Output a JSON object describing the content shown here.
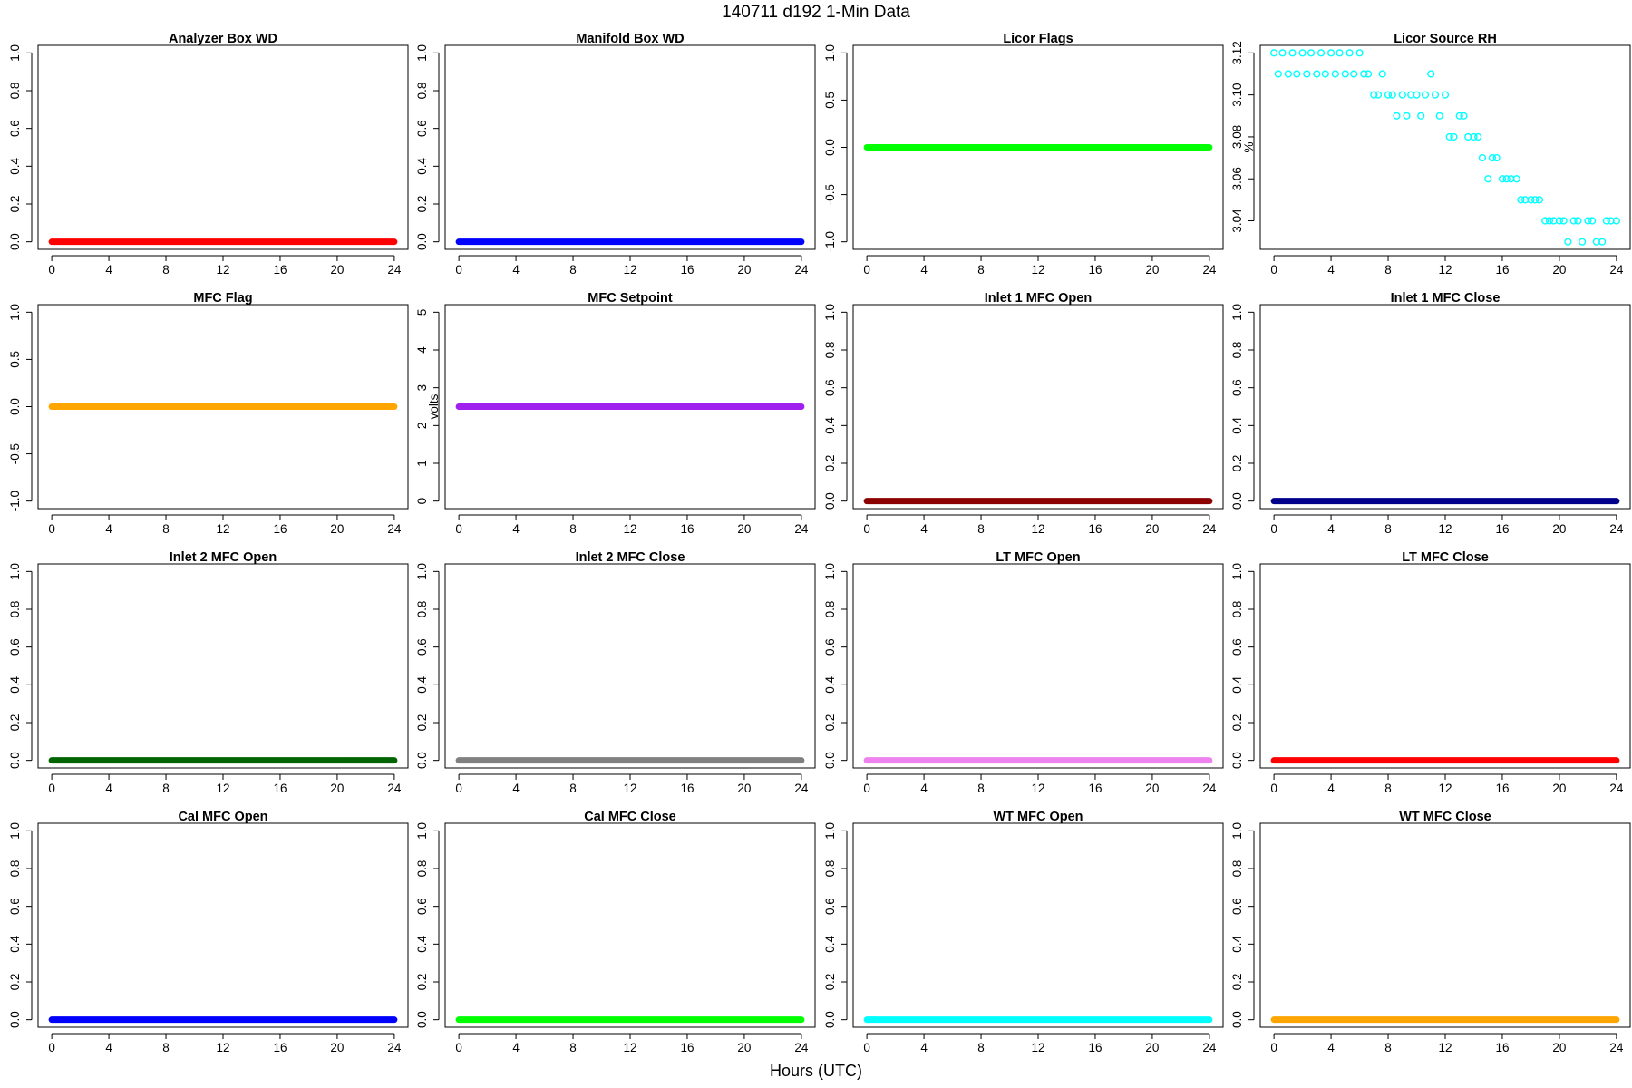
{
  "figure": {
    "title": "140711   d192   1-Min Data",
    "xlabel": "Hours (UTC)"
  },
  "chart_data": [
    {
      "type": "scatter",
      "title": "Analyzer Box WD",
      "ylabel": "",
      "color": "#ff0000",
      "xlim": [
        0,
        24
      ],
      "ylim": [
        0,
        1
      ],
      "xticks": [
        0,
        4,
        8,
        12,
        16,
        20,
        24
      ],
      "yticks": [
        "0.0",
        "0.2",
        "0.4",
        "0.6",
        "0.8",
        "1.0"
      ],
      "series": [
        {
          "x": [
            0,
            24
          ],
          "y": [
            0,
            0
          ]
        }
      ]
    },
    {
      "type": "scatter",
      "title": "Manifold Box WD",
      "ylabel": "",
      "color": "#0000ff",
      "xlim": [
        0,
        24
      ],
      "ylim": [
        0,
        1
      ],
      "xticks": [
        0,
        4,
        8,
        12,
        16,
        20,
        24
      ],
      "yticks": [
        "0.0",
        "0.2",
        "0.4",
        "0.6",
        "0.8",
        "1.0"
      ],
      "series": [
        {
          "x": [
            0,
            24
          ],
          "y": [
            0,
            0
          ]
        }
      ]
    },
    {
      "type": "scatter",
      "title": "Licor Flags",
      "ylabel": "",
      "color": "#00ff00",
      "xlim": [
        0,
        24
      ],
      "ylim": [
        -1,
        1
      ],
      "xticks": [
        0,
        4,
        8,
        12,
        16,
        20,
        24
      ],
      "yticks": [
        "-1.0",
        "-0.5",
        "0.0",
        "0.5",
        "1.0"
      ],
      "series": [
        {
          "x": [
            0,
            24
          ],
          "y": [
            0,
            0
          ]
        }
      ]
    },
    {
      "type": "scatter",
      "title": "Licor Source RH",
      "ylabel": "%",
      "color": "#00ffff",
      "xlim": [
        0,
        24
      ],
      "ylim": [
        3.03,
        3.12
      ],
      "xticks": [
        0,
        4,
        8,
        12,
        16,
        20,
        24
      ],
      "yticks": [
        "3.04",
        "3.06",
        "3.08",
        "3.10",
        "3.12"
      ],
      "series": [
        {
          "x": [
            0,
            0.3,
            0.6,
            1.0,
            1.3,
            1.6,
            2.0,
            2.3,
            2.6,
            3.0,
            3.3,
            3.6,
            4.0,
            4.3,
            4.6,
            5.0,
            5.3,
            5.6,
            6.0,
            6.3,
            6.6,
            7.0,
            7.3,
            7.6,
            8.0,
            8.3,
            8.6,
            9.0,
            9.3,
            9.6,
            10.0,
            10.3,
            10.6,
            11.0,
            11.3,
            11.6,
            12.0,
            12.3,
            12.6,
            13.0,
            13.3,
            13.6,
            14.0,
            14.3,
            14.6,
            15.0,
            15.3,
            15.6,
            16.0,
            16.3,
            16.6,
            17.0,
            17.3,
            17.6,
            18.0,
            18.3,
            18.6,
            19.0,
            19.3,
            19.6,
            20.0,
            20.3,
            20.6,
            21.0,
            21.3,
            21.6,
            22.0,
            22.3,
            22.6,
            23.0,
            23.3,
            23.6,
            24.0
          ],
          "y": [
            3.12,
            3.11,
            3.12,
            3.11,
            3.12,
            3.11,
            3.12,
            3.11,
            3.12,
            3.11,
            3.12,
            3.11,
            3.12,
            3.11,
            3.12,
            3.11,
            3.12,
            3.11,
            3.12,
            3.11,
            3.11,
            3.1,
            3.1,
            3.11,
            3.1,
            3.1,
            3.09,
            3.1,
            3.09,
            3.1,
            3.1,
            3.09,
            3.1,
            3.11,
            3.1,
            3.09,
            3.1,
            3.08,
            3.08,
            3.09,
            3.09,
            3.08,
            3.08,
            3.08,
            3.07,
            3.06,
            3.07,
            3.07,
            3.06,
            3.06,
            3.06,
            3.06,
            3.05,
            3.05,
            3.05,
            3.05,
            3.05,
            3.04,
            3.04,
            3.04,
            3.04,
            3.04,
            3.03,
            3.04,
            3.04,
            3.03,
            3.04,
            3.04,
            3.03,
            3.03,
            3.04,
            3.04,
            3.04
          ]
        }
      ]
    },
    {
      "type": "scatter",
      "title": "MFC Flag",
      "ylabel": "",
      "color": "#ffa500",
      "xlim": [
        0,
        24
      ],
      "ylim": [
        -1,
        1
      ],
      "xticks": [
        0,
        4,
        8,
        12,
        16,
        20,
        24
      ],
      "yticks": [
        "-1.0",
        "-0.5",
        "0.0",
        "0.5",
        "1.0"
      ],
      "series": [
        {
          "x": [
            0,
            24
          ],
          "y": [
            0,
            0
          ]
        }
      ]
    },
    {
      "type": "scatter",
      "title": "MFC Setpoint",
      "ylabel": "volts",
      "color": "#a020f0",
      "xlim": [
        0,
        24
      ],
      "ylim": [
        0,
        5
      ],
      "xticks": [
        0,
        4,
        8,
        12,
        16,
        20,
        24
      ],
      "yticks": [
        "0",
        "1",
        "2",
        "3",
        "4",
        "5"
      ],
      "series": [
        {
          "x": [
            0,
            24
          ],
          "y": [
            2.5,
            2.5
          ]
        }
      ]
    },
    {
      "type": "scatter",
      "title": "Inlet 1 MFC Open",
      "ylabel": "",
      "color": "#8b0000",
      "xlim": [
        0,
        24
      ],
      "ylim": [
        0,
        1
      ],
      "xticks": [
        0,
        4,
        8,
        12,
        16,
        20,
        24
      ],
      "yticks": [
        "0.0",
        "0.2",
        "0.4",
        "0.6",
        "0.8",
        "1.0"
      ],
      "series": [
        {
          "x": [
            0,
            24
          ],
          "y": [
            0,
            0
          ]
        }
      ]
    },
    {
      "type": "scatter",
      "title": "Inlet 1 MFC Close",
      "ylabel": "",
      "color": "#00008b",
      "xlim": [
        0,
        24
      ],
      "ylim": [
        0,
        1
      ],
      "xticks": [
        0,
        4,
        8,
        12,
        16,
        20,
        24
      ],
      "yticks": [
        "0.0",
        "0.2",
        "0.4",
        "0.6",
        "0.8",
        "1.0"
      ],
      "series": [
        {
          "x": [
            0,
            24
          ],
          "y": [
            0,
            0
          ]
        }
      ]
    },
    {
      "type": "scatter",
      "title": "Inlet 2 MFC Open",
      "ylabel": "",
      "color": "#006400",
      "xlim": [
        0,
        24
      ],
      "ylim": [
        0,
        1
      ],
      "xticks": [
        0,
        4,
        8,
        12,
        16,
        20,
        24
      ],
      "yticks": [
        "0.0",
        "0.2",
        "0.4",
        "0.6",
        "0.8",
        "1.0"
      ],
      "series": [
        {
          "x": [
            0,
            24
          ],
          "y": [
            0,
            0
          ]
        }
      ]
    },
    {
      "type": "scatter",
      "title": "Inlet 2 MFC Close",
      "ylabel": "",
      "color": "#808080",
      "xlim": [
        0,
        24
      ],
      "ylim": [
        0,
        1
      ],
      "xticks": [
        0,
        4,
        8,
        12,
        16,
        20,
        24
      ],
      "yticks": [
        "0.0",
        "0.2",
        "0.4",
        "0.6",
        "0.8",
        "1.0"
      ],
      "series": [
        {
          "x": [
            0,
            24
          ],
          "y": [
            0,
            0
          ]
        }
      ]
    },
    {
      "type": "scatter",
      "title": "LT MFC Open",
      "ylabel": "",
      "color": "#ee82ee",
      "xlim": [
        0,
        24
      ],
      "ylim": [
        0,
        1
      ],
      "xticks": [
        0,
        4,
        8,
        12,
        16,
        20,
        24
      ],
      "yticks": [
        "0.0",
        "0.2",
        "0.4",
        "0.6",
        "0.8",
        "1.0"
      ],
      "series": [
        {
          "x": [
            0,
            24
          ],
          "y": [
            0,
            0
          ]
        }
      ]
    },
    {
      "type": "scatter",
      "title": "LT MFC Close",
      "ylabel": "",
      "color": "#ff0000",
      "xlim": [
        0,
        24
      ],
      "ylim": [
        0,
        1
      ],
      "xticks": [
        0,
        4,
        8,
        12,
        16,
        20,
        24
      ],
      "yticks": [
        "0.0",
        "0.2",
        "0.4",
        "0.6",
        "0.8",
        "1.0"
      ],
      "series": [
        {
          "x": [
            0,
            24
          ],
          "y": [
            0,
            0
          ]
        }
      ]
    },
    {
      "type": "scatter",
      "title": "Cal MFC Open",
      "ylabel": "",
      "color": "#0000ff",
      "xlim": [
        0,
        24
      ],
      "ylim": [
        0,
        1
      ],
      "xticks": [
        0,
        4,
        8,
        12,
        16,
        20,
        24
      ],
      "yticks": [
        "0.0",
        "0.2",
        "0.4",
        "0.6",
        "0.8",
        "1.0"
      ],
      "series": [
        {
          "x": [
            0,
            24
          ],
          "y": [
            0,
            0
          ]
        }
      ]
    },
    {
      "type": "scatter",
      "title": "Cal MFC Close",
      "ylabel": "",
      "color": "#00ff00",
      "xlim": [
        0,
        24
      ],
      "ylim": [
        0,
        1
      ],
      "xticks": [
        0,
        4,
        8,
        12,
        16,
        20,
        24
      ],
      "yticks": [
        "0.0",
        "0.2",
        "0.4",
        "0.6",
        "0.8",
        "1.0"
      ],
      "series": [
        {
          "x": [
            0,
            24
          ],
          "y": [
            0,
            0
          ]
        }
      ]
    },
    {
      "type": "scatter",
      "title": "WT MFC Open",
      "ylabel": "",
      "color": "#00ffff",
      "xlim": [
        0,
        24
      ],
      "ylim": [
        0,
        1
      ],
      "xticks": [
        0,
        4,
        8,
        12,
        16,
        20,
        24
      ],
      "yticks": [
        "0.0",
        "0.2",
        "0.4",
        "0.6",
        "0.8",
        "1.0"
      ],
      "series": [
        {
          "x": [
            0,
            24
          ],
          "y": [
            0,
            0
          ]
        }
      ]
    },
    {
      "type": "scatter",
      "title": "WT MFC Close",
      "ylabel": "",
      "color": "#ffa500",
      "xlim": [
        0,
        24
      ],
      "ylim": [
        0,
        1
      ],
      "xticks": [
        0,
        4,
        8,
        12,
        16,
        20,
        24
      ],
      "yticks": [
        "0.0",
        "0.2",
        "0.4",
        "0.6",
        "0.8",
        "1.0"
      ],
      "series": [
        {
          "x": [
            0,
            24
          ],
          "y": [
            0,
            0
          ]
        }
      ]
    }
  ]
}
